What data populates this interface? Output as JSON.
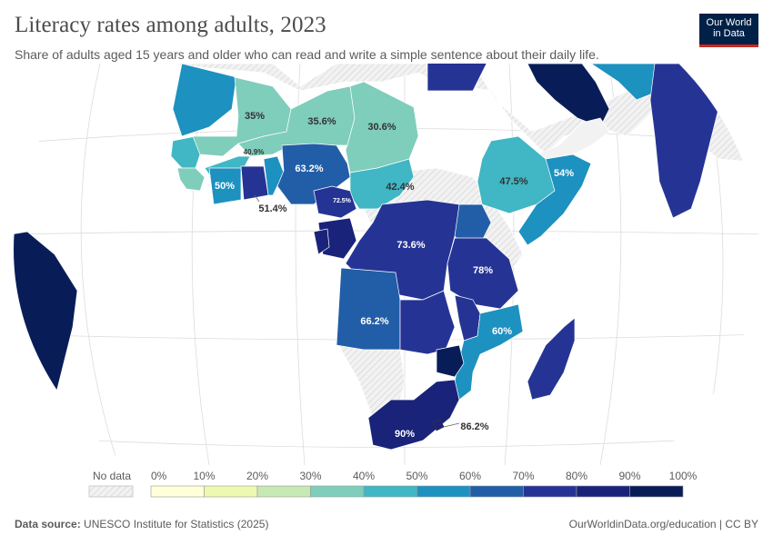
{
  "header": {
    "title": "Literacy rates among adults, 2023",
    "subtitle": "Share of adults aged 15 years and older who can read and write a simple sentence about their daily life."
  },
  "logo": {
    "line1": "Our World",
    "line2": "in Data",
    "bg": "#002147",
    "accent": "#ce261e"
  },
  "map": {
    "projection": "orthographic-africa-centered",
    "regions": [
      {
        "name": "Mauritania",
        "value": 35,
        "label": "35%"
      },
      {
        "name": "Mali",
        "value": 35.6,
        "label": "35.6%"
      },
      {
        "name": "Niger",
        "value": 30.6,
        "label": "30.6%"
      },
      {
        "name": "Burkina Faso",
        "value": 40.9,
        "label": "40.9%"
      },
      {
        "name": "Nigeria",
        "value": 63.2,
        "label": "63.2%"
      },
      {
        "name": "Chad",
        "value": 42.4,
        "label": "42.4%"
      },
      {
        "name": "Ethiopia",
        "value": 47.5,
        "label": "47.5%"
      },
      {
        "name": "Somalia",
        "value": 54,
        "label": "54%"
      },
      {
        "name": "Cote d'Ivoire",
        "value": 50,
        "label": "50%"
      },
      {
        "name": "Ghana",
        "value": 51.4,
        "label": "51.4%"
      },
      {
        "name": "Cameroon",
        "value": 72.5,
        "label": "72.5%"
      },
      {
        "name": "Democratic Republic of Congo",
        "value": 73.6,
        "label": "73.6%"
      },
      {
        "name": "Tanzania",
        "value": 78,
        "label": "78%"
      },
      {
        "name": "Angola",
        "value": 66.2,
        "label": "66.2%"
      },
      {
        "name": "Mozambique",
        "value": 60,
        "label": "60%"
      },
      {
        "name": "South Africa",
        "value": 90,
        "label": "90%"
      },
      {
        "name": "Eswatini",
        "value": 86.2,
        "label": "86.2%"
      }
    ]
  },
  "legend": {
    "no_data_label": "No data",
    "ticks": [
      "0%",
      "10%",
      "20%",
      "30%",
      "40%",
      "50%",
      "60%",
      "70%",
      "80%",
      "90%",
      "100%"
    ],
    "colors": [
      "#ffffd9",
      "#edf8b1",
      "#c7e9b4",
      "#7fcdbb",
      "#41b6c4",
      "#1d91c0",
      "#225ea8",
      "#253494",
      "#1a237a",
      "#081d58"
    ]
  },
  "footer": {
    "source_label": "Data source:",
    "source_text": " UNESCO Institute for Statistics (2025)",
    "credit": "OurWorldinData.org/education | CC BY"
  }
}
